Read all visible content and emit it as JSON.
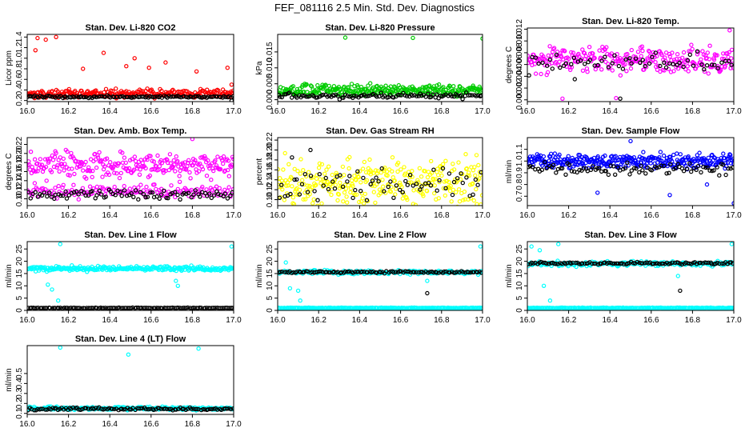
{
  "figure_title": "FEF_081116  2.5 Min. Std. Dev. Diagnostics",
  "colors": {
    "red": "#ff0000",
    "green": "#00cc00",
    "magenta": "#ff00ff",
    "yellow": "#ffff00",
    "blue": "#0000ff",
    "cyan": "#00ffff",
    "black": "#000000"
  },
  "chart_data": [
    {
      "type": "scatter",
      "title": "Stan. Dev. Li-820 CO2",
      "ylabel": "Licor ppm",
      "xlim": [
        16.0,
        17.0
      ],
      "xticks": [
        "16.0",
        "16.2",
        "16.4",
        "16.6",
        "16.8",
        "17.0"
      ],
      "ylim": [
        0.18,
        1.45
      ],
      "yticks": [
        0.2,
        0.4,
        0.6,
        0.8,
        1.0,
        1.2,
        1.4
      ],
      "ytick_labels": [
        "0.2",
        "0.4",
        "0.6",
        "0.8",
        "1.0",
        "1.2",
        "1.4"
      ],
      "series": [
        {
          "name": "primary",
          "color": "red",
          "baseline": 0.33,
          "spread": 0.12,
          "n": 260,
          "outliers": [
            [
              16.04,
              1.15
            ],
            [
              16.05,
              1.38
            ],
            [
              16.09,
              1.35
            ],
            [
              16.14,
              1.4
            ],
            [
              16.27,
              0.8
            ],
            [
              16.37,
              1.1
            ],
            [
              16.52,
              1.0
            ],
            [
              16.48,
              0.85
            ],
            [
              16.59,
              0.82
            ],
            [
              16.67,
              0.92
            ],
            [
              16.82,
              0.75
            ],
            [
              16.97,
              0.82
            ],
            [
              16.99,
              0.5
            ]
          ]
        },
        {
          "name": "reference",
          "color": "black",
          "baseline": 0.27,
          "spread": 0.03,
          "n": 120,
          "outliers": [
            [
              16.99,
              0.2
            ]
          ]
        }
      ]
    },
    {
      "type": "scatter",
      "title": "Stan. Dev. Li-820 Pressure",
      "ylabel": "kPa",
      "xlim": [
        16.0,
        17.0
      ],
      "xticks": [
        "16.0",
        "16.2",
        "16.4",
        "16.6",
        "16.8",
        "17.0"
      ],
      "ylim": [
        -0.0006,
        0.0205
      ],
      "yticks": [
        0.0,
        0.005,
        0.01,
        0.015
      ],
      "ytick_labels": [
        "0.000",
        "0.005",
        "0.010",
        "0.015"
      ],
      "series": [
        {
          "name": "primary",
          "color": "green",
          "baseline": 0.003,
          "spread": 0.0026,
          "n": 300,
          "outliers": [
            [
              16.33,
              0.0195
            ],
            [
              16.66,
              0.0194
            ],
            [
              17.0,
              0.0192
            ]
          ]
        },
        {
          "name": "reference",
          "color": "black",
          "baseline": 0.0012,
          "spread": 0.0014,
          "n": 110,
          "outliers": []
        }
      ]
    },
    {
      "type": "scatter",
      "title": "Stan. Dev. Li-820 Temp.",
      "ylabel": "degrees C",
      "xlim": [
        16.0,
        17.0
      ],
      "xticks": [
        "16.0",
        "16.2",
        "16.4",
        "16.6",
        "16.8",
        "17.0"
      ],
      "ylim": [
        -0.0003,
        0.0122
      ],
      "yticks": [
        0.0,
        0.002,
        0.004,
        0.006,
        0.008,
        0.01,
        0.012
      ],
      "ytick_labels": [
        "0.000",
        "0.002",
        "0.004",
        "0.006",
        "0.008",
        "0.010",
        "0.012"
      ],
      "series": [
        {
          "name": "primary",
          "color": "magenta",
          "baseline": 0.0068,
          "spread": 0.0032,
          "n": 280,
          "outliers": [
            [
              16.17,
              0.0002
            ],
            [
              16.43,
              0.0003
            ],
            [
              16.98,
              0.0118
            ]
          ]
        },
        {
          "name": "reference",
          "color": "black",
          "baseline": 0.0062,
          "spread": 0.0028,
          "n": 60,
          "outliers": [
            [
              16.23,
              0.0035
            ],
            [
              16.45,
              0.0002
            ]
          ]
        }
      ]
    },
    {
      "type": "scatter",
      "title": "Stan. Dev. Amb. Box Temp.",
      "ylabel": "degrees C",
      "xlim": [
        16.0,
        17.0
      ],
      "xticks": [
        "16.0",
        "16.2",
        "16.4",
        "16.6",
        "16.8",
        "17.0"
      ],
      "ylim": [
        0.085,
        0.235
      ],
      "yticks": [
        0.1,
        0.12,
        0.14,
        0.16,
        0.18,
        0.2,
        0.22
      ],
      "ytick_labels": [
        "0.10",
        "0.12",
        "0.14",
        "0.16",
        "0.18",
        "0.20",
        "0.22"
      ],
      "series": [
        {
          "name": "primary-upper",
          "color": "magenta",
          "baseline": 0.175,
          "spread": 0.04,
          "n": 260,
          "outliers": [
            [
              16.8,
              0.232
            ]
          ]
        },
        {
          "name": "primary-lower",
          "color": "magenta",
          "baseline": 0.118,
          "spread": 0.022,
          "n": 150,
          "outliers": []
        },
        {
          "name": "reference",
          "color": "black",
          "baseline": 0.11,
          "spread": 0.016,
          "n": 90,
          "outliers": []
        }
      ]
    },
    {
      "type": "scatter",
      "title": "Stan. Dev. Gas Stream RH",
      "ylabel": "percent",
      "xlim": [
        16.0,
        17.0
      ],
      "xticks": [
        "16.0",
        "16.2",
        "16.4",
        "16.6",
        "16.8",
        "17.0"
      ],
      "ylim": [
        0.088,
        0.225
      ],
      "yticks": [
        0.1,
        0.12,
        0.14,
        0.16,
        0.18,
        0.2,
        0.22
      ],
      "ytick_labels": [
        "0.10",
        "0.12",
        "0.14",
        "0.16",
        "0.18",
        "0.20",
        "0.22"
      ],
      "series": [
        {
          "name": "primary",
          "color": "yellow",
          "baseline": 0.135,
          "spread": 0.07,
          "n": 320,
          "outliers": []
        },
        {
          "name": "reference",
          "color": "black",
          "baseline": 0.13,
          "spread": 0.045,
          "n": 70,
          "outliers": [
            [
              16.07,
              0.185
            ],
            [
              16.16,
              0.2
            ]
          ]
        }
      ]
    },
    {
      "type": "scatter",
      "title": "Stan. Dev. Sample Flow",
      "ylabel": "ml/min",
      "xlim": [
        16.0,
        17.0
      ],
      "xticks": [
        "16.0",
        "16.2",
        "16.4",
        "16.6",
        "16.8",
        "17.0"
      ],
      "ylim": [
        0.62,
        1.2
      ],
      "yticks": [
        0.7,
        0.8,
        0.9,
        1.0,
        1.1
      ],
      "ytick_labels": [
        "0.7",
        "0.8",
        "0.9",
        "1.0",
        "1.1"
      ],
      "series": [
        {
          "name": "primary",
          "color": "blue",
          "baseline": 1.0,
          "spread": 0.09,
          "n": 320,
          "outliers": [
            [
              16.5,
              1.17
            ],
            [
              16.34,
              0.73
            ],
            [
              16.69,
              0.71
            ],
            [
              16.87,
              0.8
            ],
            [
              17.0,
              0.64
            ]
          ]
        },
        {
          "name": "reference",
          "color": "black",
          "baseline": 0.93,
          "spread": 0.08,
          "n": 90,
          "outliers": []
        }
      ]
    },
    {
      "type": "scatter",
      "title": "Stan. Dev. Line 1 Flow",
      "ylabel": "ml/min",
      "xlim": [
        16.0,
        17.0
      ],
      "xticks": [
        "16.0",
        "16.2",
        "16.4",
        "16.6",
        "16.8",
        "17.0"
      ],
      "ylim": [
        0,
        28
      ],
      "yticks": [
        0,
        5,
        10,
        15,
        20,
        25
      ],
      "ytick_labels": [
        "0",
        "5",
        "10",
        "15",
        "20",
        "25"
      ],
      "series": [
        {
          "name": "primary",
          "color": "cyan",
          "baseline": 17.0,
          "spread": 1.4,
          "n": 260,
          "outliers": [
            [
              16.1,
              10.5
            ],
            [
              16.12,
              8.5
            ],
            [
              16.16,
              27.0
            ],
            [
              16.15,
              4.0
            ],
            [
              16.72,
              12.0
            ],
            [
              16.73,
              10.0
            ],
            [
              16.99,
              26.0
            ]
          ]
        },
        {
          "name": "reference",
          "color": "black",
          "baseline": 1.0,
          "spread": 0.2,
          "n": 120,
          "outliers": []
        }
      ]
    },
    {
      "type": "scatter",
      "title": "Stan. Dev. Line 2 Flow",
      "ylabel": "ml/min",
      "xlim": [
        16.0,
        17.0
      ],
      "xticks": [
        "16.0",
        "16.2",
        "16.4",
        "16.6",
        "16.8",
        "17.0"
      ],
      "ylim": [
        0,
        28
      ],
      "yticks": [
        0,
        5,
        10,
        15,
        20,
        25
      ],
      "ytick_labels": [
        "0",
        "5",
        "10",
        "15",
        "20",
        "25"
      ],
      "series": [
        {
          "name": "primary",
          "color": "cyan",
          "baseline": 15.5,
          "spread": 1.2,
          "n": 200,
          "outliers": [
            [
              16.04,
              19.5
            ],
            [
              16.06,
              9.0
            ],
            [
              16.1,
              8.0
            ],
            [
              16.11,
              4.0
            ],
            [
              16.73,
              12.0
            ],
            [
              16.99,
              26.0
            ]
          ]
        },
        {
          "name": "primary-low",
          "color": "cyan",
          "baseline": 1.0,
          "spread": 0.2,
          "n": 200,
          "outliers": []
        },
        {
          "name": "reference",
          "color": "black",
          "baseline": 15.6,
          "spread": 0.6,
          "n": 110,
          "outliers": [
            [
              16.73,
              7.0
            ]
          ]
        }
      ]
    },
    {
      "type": "scatter",
      "title": "Stan. Dev. Line 3 Flow",
      "ylabel": "ml/min",
      "xlim": [
        16.0,
        17.0
      ],
      "xticks": [
        "16.0",
        "16.2",
        "16.4",
        "16.6",
        "16.8",
        "17.0"
      ],
      "ylim": [
        0,
        28
      ],
      "yticks": [
        0,
        5,
        10,
        15,
        20,
        25
      ],
      "ytick_labels": [
        "0",
        "5",
        "10",
        "15",
        "20",
        "25"
      ],
      "series": [
        {
          "name": "primary",
          "color": "cyan",
          "baseline": 19.0,
          "spread": 1.5,
          "n": 200,
          "outliers": [
            [
              16.02,
              26.0
            ],
            [
              16.06,
              24.5
            ],
            [
              16.08,
              10.0
            ],
            [
              16.11,
              4.0
            ],
            [
              16.15,
              27.0
            ],
            [
              16.73,
              14.0
            ],
            [
              16.99,
              27.0
            ]
          ]
        },
        {
          "name": "primary-low",
          "color": "cyan",
          "baseline": 1.0,
          "spread": 0.2,
          "n": 200,
          "outliers": []
        },
        {
          "name": "reference",
          "color": "black",
          "baseline": 19.2,
          "spread": 0.7,
          "n": 110,
          "outliers": [
            [
              16.74,
              8.0
            ]
          ]
        }
      ]
    },
    {
      "type": "scatter",
      "title": "Stan. Dev. Line 4 (LT) Flow",
      "ylabel": "ml/min",
      "xlim": [
        16.0,
        17.0
      ],
      "xticks": [
        "16.0",
        "16.2",
        "16.4",
        "16.6",
        "16.8",
        "17.0"
      ],
      "ylim": [
        0.09,
        0.78
      ],
      "yticks": [
        0.1,
        0.2,
        0.3,
        0.4,
        0.5
      ],
      "ytick_labels": [
        "0.1",
        "0.2",
        "0.3",
        "0.4",
        "0.5"
      ],
      "series": [
        {
          "name": "primary",
          "color": "cyan",
          "baseline": 0.15,
          "spread": 0.025,
          "n": 260,
          "outliers": [
            [
              16.16,
              0.76
            ],
            [
              16.49,
              0.69
            ],
            [
              16.83,
              0.75
            ]
          ]
        },
        {
          "name": "reference",
          "color": "black",
          "baseline": 0.145,
          "spread": 0.02,
          "n": 110,
          "outliers": []
        }
      ]
    }
  ]
}
